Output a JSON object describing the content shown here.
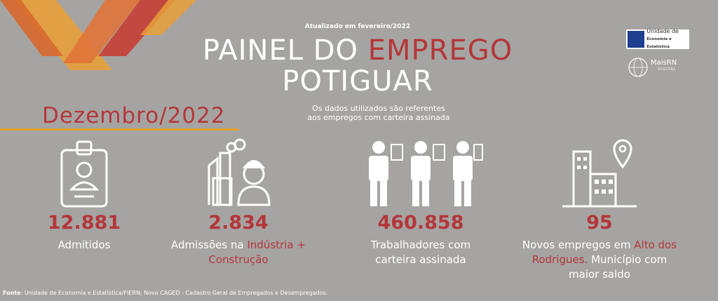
{
  "header": {
    "updated": "Atualizado em fevereiro/2022",
    "title_part1": "PAINEL DO ",
    "title_highlight": "EMPREGO",
    "title_line2": "POTIGUAR",
    "month": "Dezembro/2022",
    "note_line1": "Os dados utilizados são referentes",
    "note_line2": "aos empregos com carteira assinada"
  },
  "logos": {
    "unit_line1": "Unidade de",
    "unit_line2": "Economia e Estatística",
    "mais_rn": "MaisRN",
    "mais_rn_sub": "DIGITAL"
  },
  "stats": [
    {
      "value": "12.881",
      "label": "Admitidos",
      "icon": "id-badge-icon"
    },
    {
      "value": "2.834",
      "label_prefix": "Admissões na ",
      "label_highlight": "Indústria +",
      "label_line2": "Construção",
      "icon": "factory-worker-icon"
    },
    {
      "value": "460.858",
      "label_line1": "Trabalhadores com",
      "label_line2": "carteira assinada",
      "icon": "workers-icon"
    },
    {
      "value": "95",
      "label_prefix": "Novos empregos em ",
      "label_highlight": "Alto dos",
      "label_highlight2": "Rodrigues.",
      "label_suffix": " Município com",
      "label_line3": "maior saldo",
      "icon": "city-location-icon"
    }
  ],
  "footer": {
    "source_label": "Fonte",
    "source_text": ": Unidade de Economia e Estatística/FIERN; Novo CAGED - Cadastro Geral de Empregados e Desempregados."
  },
  "colors": {
    "background": "#a6a4a2",
    "accent": "#b3373a",
    "gold": "#e0a12e"
  }
}
